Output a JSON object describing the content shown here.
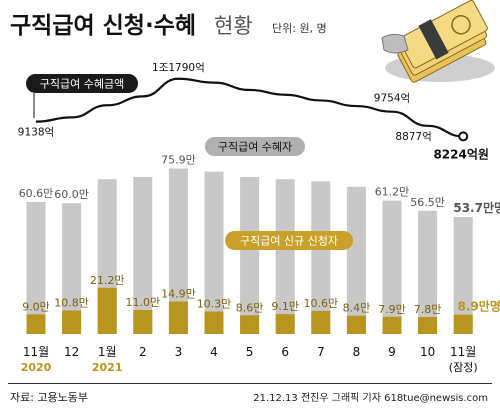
{
  "title": "구직급여 신청·수혜",
  "title_suffix": "현황",
  "unit_note": "단위: 원, 명",
  "source": "자료: 고용노동부",
  "credit": "21.12.13 전진우 그래픽 기자 618tue@newsis.com",
  "colors": {
    "line": "#111111",
    "recipient_bar": "#c8c8c8",
    "new_bar": "#b8951f",
    "new_bar_dark": "#7a5f0e",
    "last_value_new": "#b8951f",
    "year_label": "#b8951f"
  },
  "chart_data": [
    {
      "type": "line",
      "series_label": "구직급여 수혜금액",
      "categories": [
        "11월",
        "12",
        "1월",
        "2",
        "3",
        "4",
        "5",
        "6",
        "7",
        "8",
        "9",
        "10",
        "11월"
      ],
      "year_labels": [
        "2020",
        "",
        "2021",
        "",
        "",
        "",
        "",
        "",
        "",
        "",
        "",
        "",
        ""
      ],
      "last_category_note": "(잠정)",
      "values": [
        9138,
        9400,
        10150,
        10700,
        11790,
        11550,
        11100,
        10800,
        10450,
        10100,
        9754,
        8877,
        8224
      ],
      "data_labels": [
        "9138억",
        "",
        "",
        "",
        "1조1790억",
        "",
        "",
        "",
        "",
        "",
        "9754억",
        "8877억",
        "8224억원"
      ]
    },
    {
      "type": "bar",
      "series": [
        {
          "name": "구직급여 수혜자",
          "values": [
            60.6,
            60.0,
            71.0,
            72.0,
            75.9,
            74.5,
            72.0,
            71.0,
            70.0,
            67.5,
            61.2,
            56.5,
            53.7
          ],
          "data_labels": [
            "60.6만",
            "60.0만",
            "",
            "",
            "75.9만",
            "",
            "",
            "",
            "",
            "",
            "61.2만",
            "56.5만",
            "53.7만명"
          ]
        },
        {
          "name": "구직급여 신규 신청자",
          "values": [
            9.0,
            10.8,
            21.2,
            11.0,
            14.9,
            10.3,
            8.6,
            9.1,
            10.6,
            8.4,
            7.9,
            7.8,
            8.9
          ],
          "data_labels": [
            "9.0만",
            "10.8만",
            "21.2만",
            "11.0만",
            "14.9만",
            "10.3만",
            "8.6만",
            "9.1만",
            "10.6만",
            "8.4만",
            "7.9만",
            "7.8만",
            "8.9만명"
          ]
        }
      ]
    }
  ]
}
